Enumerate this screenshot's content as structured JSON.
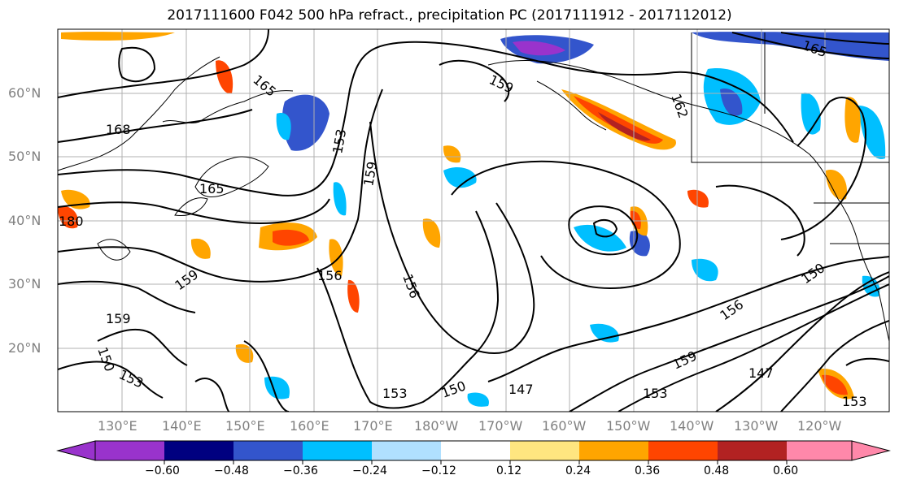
{
  "title": "2017111600 F042 500 hPa refract., precipitation PC (2017111912 - 2017112012)",
  "lat_labels": [
    "60°N",
    "50°N",
    "40°N",
    "30°N",
    "20°N"
  ],
  "lon_labels": [
    "130°E",
    "140°E",
    "150°E",
    "160°E",
    "170°E",
    "180°W",
    "170°W",
    "160°W",
    "150°W",
    "140°W",
    "130°W",
    "120°W"
  ],
  "contour_labels": [
    "168",
    "165",
    "162",
    "159",
    "156",
    "153",
    "150",
    "147",
    "180"
  ],
  "colorbar": {
    "tick_labels": [
      "−0.60",
      "−0.48",
      "−0.36",
      "−0.24",
      "−0.12",
      "0.12",
      "0.24",
      "0.36",
      "0.48",
      "0.60"
    ],
    "colors": [
      "#9933cc",
      "#000080",
      "#3355cc",
      "#00bfff",
      "#b0e0ff",
      "#ffffff",
      "#ffe680",
      "#ffa500",
      "#ff4500",
      "#b22222",
      "#ff88aa"
    ]
  }
}
